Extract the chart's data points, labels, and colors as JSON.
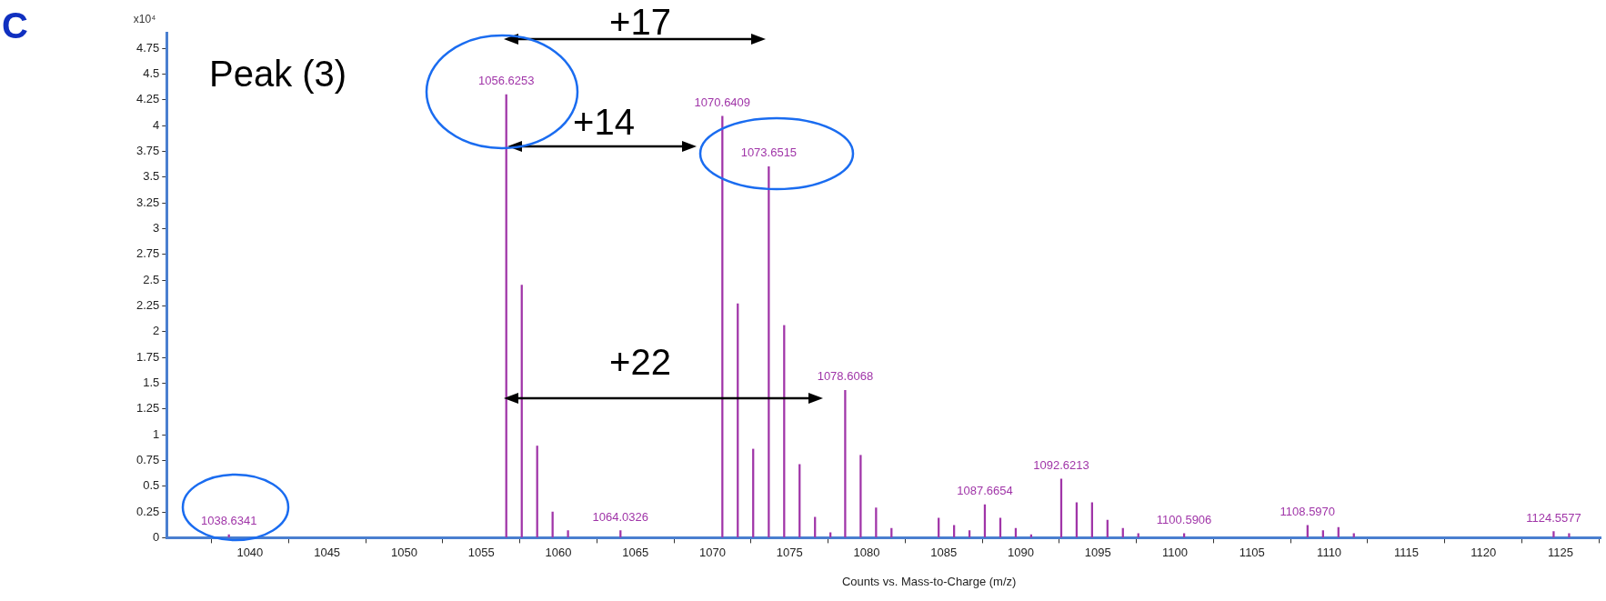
{
  "chart_data": {
    "type": "bar",
    "xlabel": "Counts vs. Mass-to-Charge (m/z)",
    "ylabel": "x10⁴",
    "annotations": [
      "C",
      "Peak (3)",
      "+17",
      "+14",
      "+22",
      {
        "text": "1038.6341",
        "x": 1038.6341,
        "y": 0.03
      },
      {
        "text": "1056.6253",
        "x": 1056.6253,
        "y": 4.3
      },
      {
        "text": "1064.0326",
        "x": 1064.0326,
        "y": 0.07
      },
      {
        "text": "1070.6409",
        "x": 1070.6409,
        "y": 4.09
      },
      {
        "text": "1073.6515",
        "x": 1073.6515,
        "y": 3.6
      },
      {
        "text": "1078.6068",
        "x": 1078.6068,
        "y": 1.43
      },
      {
        "text": "1087.6654",
        "x": 1087.6654,
        "y": 0.32
      },
      {
        "text": "1092.6213",
        "x": 1092.6213,
        "y": 0.57
      },
      {
        "text": "1100.5906",
        "x": 1100.5906,
        "y": 0.04
      },
      {
        "text": "1108.5970",
        "x": 1108.597,
        "y": 0.12
      },
      {
        "text": "1124.5577",
        "x": 1124.5577,
        "y": 0.06
      }
    ],
    "x": [
      1038.6341,
      1056.6253,
      1057.63,
      1058.63,
      1059.63,
      1060.63,
      1064.0326,
      1070.6409,
      1071.64,
      1072.64,
      1073.6515,
      1074.65,
      1075.65,
      1076.65,
      1077.65,
      1078.6068,
      1079.61,
      1080.61,
      1081.61,
      1084.67,
      1085.67,
      1086.67,
      1087.6654,
      1088.67,
      1089.67,
      1090.67,
      1092.6213,
      1093.62,
      1094.62,
      1095.62,
      1096.62,
      1097.62,
      1100.5906,
      1108.597,
      1109.6,
      1110.6,
      1111.6,
      1124.5577,
      1125.56
    ],
    "values": [
      0.03,
      4.3,
      2.45,
      0.89,
      0.25,
      0.07,
      0.07,
      4.09,
      2.27,
      0.86,
      3.6,
      2.06,
      0.71,
      0.2,
      0.05,
      1.43,
      0.8,
      0.29,
      0.09,
      0.19,
      0.12,
      0.07,
      0.32,
      0.19,
      0.09,
      0.03,
      0.57,
      0.34,
      0.34,
      0.17,
      0.09,
      0.04,
      0.04,
      0.12,
      0.07,
      0.1,
      0.04,
      0.06,
      0.04
    ],
    "color": "#a035a8",
    "xlim": [
      1034.6,
      1127.6
    ],
    "xticks": [
      {
        "value": 1035,
        "label": null
      },
      1040,
      1045,
      1050,
      1055,
      1060,
      1065,
      1070,
      1075,
      1080,
      1085,
      1090,
      1095,
      1100,
      1105,
      1110,
      1115,
      1120,
      1125
    ],
    "ylim": [
      0,
      4.9
    ],
    "yticks": [
      0,
      0.25,
      0.5,
      0.75,
      1,
      1.25,
      1.5,
      1.75,
      2,
      2.25,
      2.5,
      2.75,
      3,
      3.25,
      3.5,
      3.75,
      4,
      4.25,
      4.5,
      4.75
    ],
    "grid": false,
    "legend": false
  }
}
